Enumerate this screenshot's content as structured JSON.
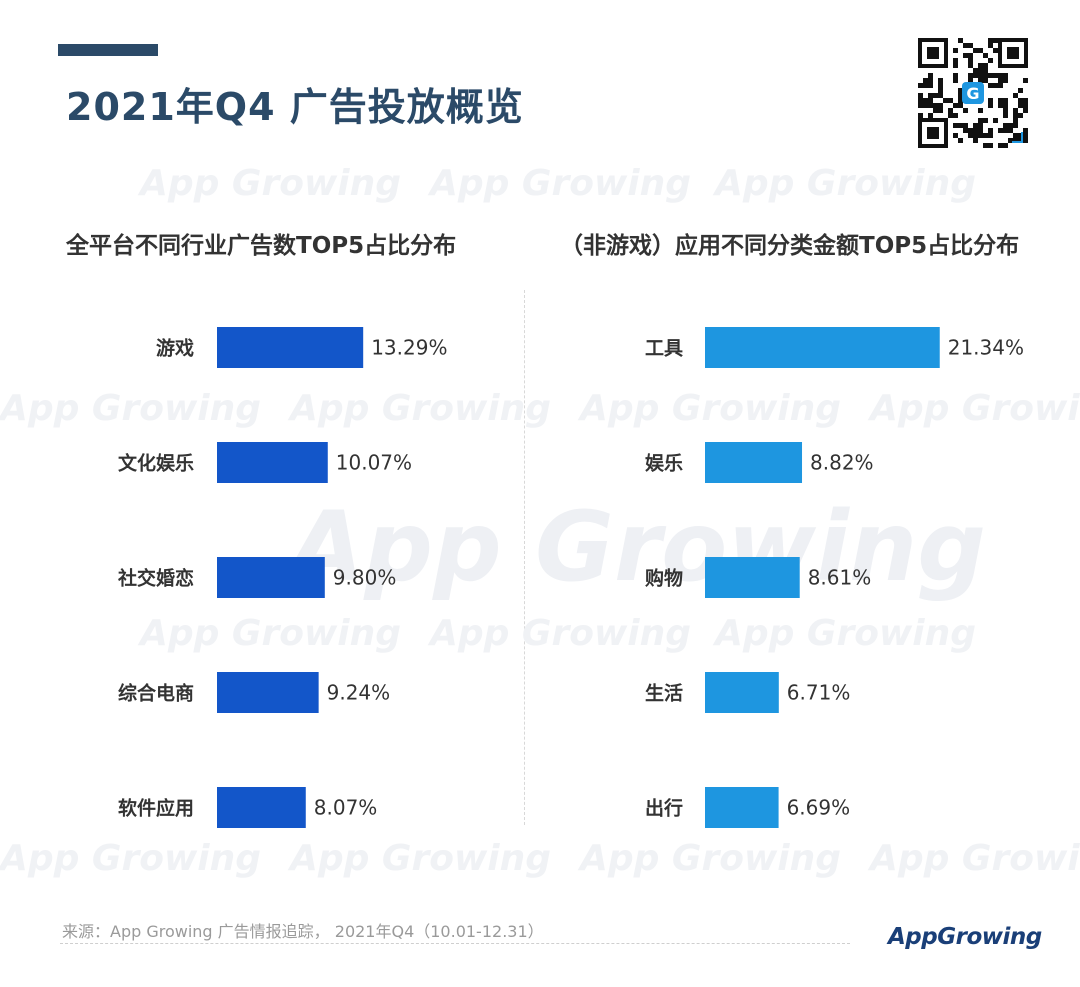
{
  "header": {
    "title": "2021年Q4 广告投放概览"
  },
  "watermark_text": "App Growing",
  "chart_data": [
    {
      "type": "bar",
      "orientation": "horizontal",
      "title": "全平台不同行业广告数TOP5占比分布",
      "categories": [
        "游戏",
        "文化娱乐",
        "社交婚恋",
        "综合电商",
        "软件应用"
      ],
      "values": [
        13.29,
        10.07,
        9.8,
        9.24,
        8.07
      ],
      "labels": [
        "13.29%",
        "10.07%",
        "9.80%",
        "9.24%",
        "8.07%"
      ],
      "unit": "%",
      "color": "#1356c9"
    },
    {
      "type": "bar",
      "orientation": "horizontal",
      "title": "（非游戏）应用不同分类金额TOP5占比分布",
      "categories": [
        "工具",
        "娱乐",
        "购物",
        "生活",
        "出行"
      ],
      "values": [
        21.34,
        8.82,
        8.61,
        6.71,
        6.69
      ],
      "labels": [
        "21.34%",
        "8.82%",
        "8.61%",
        "6.71%",
        "6.69%"
      ],
      "unit": "%",
      "color": "#1e96e0"
    }
  ],
  "footer": {
    "source": "来源：App Growing 广告情报追踪， 2021年Q4（10.01-12.31）",
    "logo": "AppGrowing"
  },
  "colors": {
    "title": "#2b4a68",
    "left_bar": "#1356c9",
    "right_bar": "#1e96e0"
  }
}
